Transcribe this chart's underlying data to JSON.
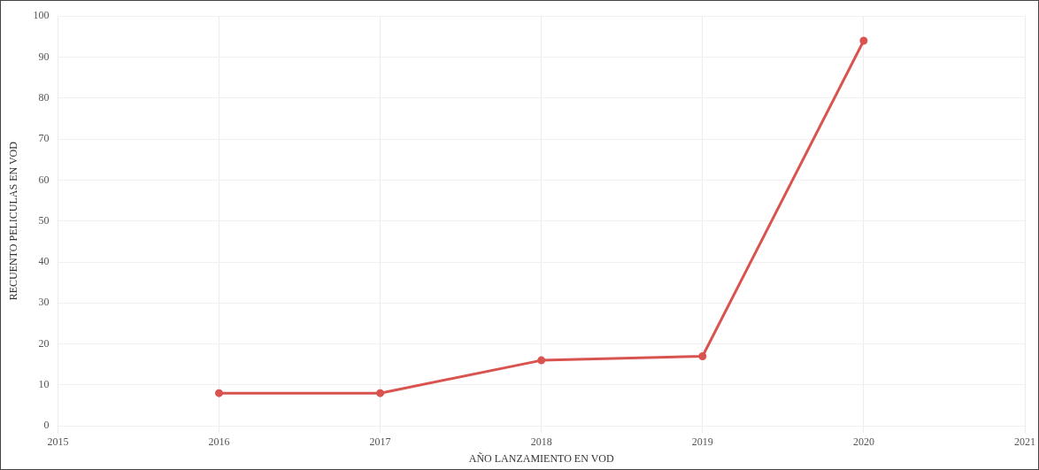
{
  "chart_data": {
    "type": "line",
    "xlabel": "AÑO LANZAMIENTO EN VOD",
    "ylabel": "RECUENTO PELICULAS EN VOD",
    "x": [
      2016,
      2017,
      2018,
      2019,
      2020
    ],
    "series": [
      {
        "color": "#d9534f",
        "values": [
          8,
          8,
          16,
          17,
          94
        ]
      }
    ],
    "xlim": [
      2015,
      2021
    ],
    "xticks": [
      2015,
      2016,
      2017,
      2018,
      2019,
      2020,
      2021
    ],
    "ylim": [
      0,
      100
    ],
    "yticks": [
      0,
      10,
      20,
      30,
      40,
      50,
      60,
      70,
      80,
      90,
      100
    ],
    "grid": true,
    "legend": false,
    "marker": "circle",
    "line_style": "solid"
  }
}
